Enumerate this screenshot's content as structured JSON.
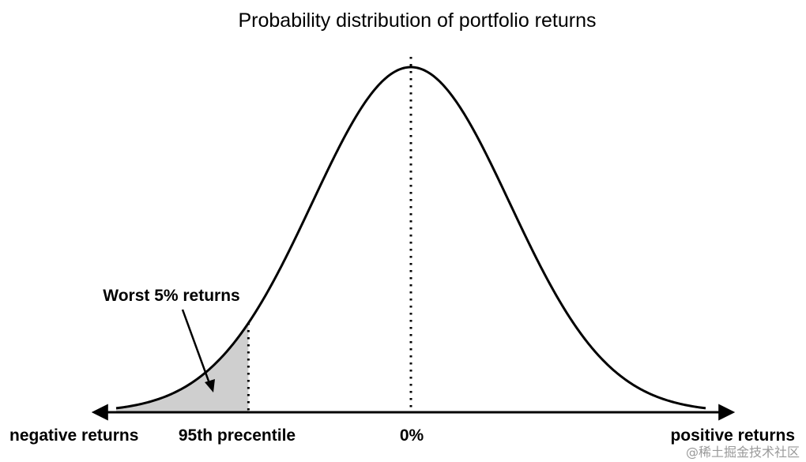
{
  "chart_data": {
    "type": "area",
    "title": "Probability distribution of portfolio returns",
    "distribution": "normal",
    "mean": 0,
    "tail_fraction": 0.05,
    "grid": false,
    "labels": {
      "left_axis": "negative returns",
      "right_axis": "positive returns",
      "cutoff": "95th precentile",
      "center": "0%",
      "annotation": "Worst 5% returns"
    },
    "colors": {
      "curve": "#000000",
      "tail_fill": "#cfcfcf",
      "axis": "#000000"
    }
  },
  "watermark": "@稀土掘金技术社区"
}
